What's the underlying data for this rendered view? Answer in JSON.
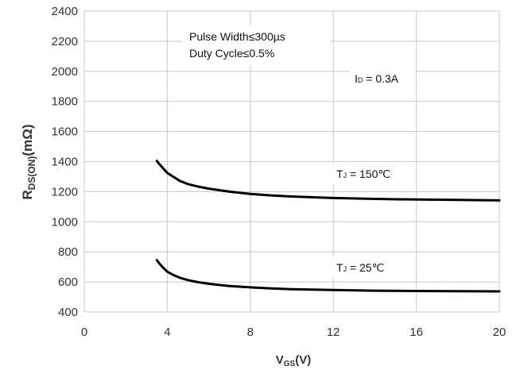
{
  "chart_data": {
    "type": "line",
    "title": "",
    "xlabel": {
      "main": "V",
      "sub": "GS",
      "suffix": "(V)"
    },
    "ylabel": {
      "main": "R",
      "sub": "DS(ON)",
      "suffix": "(mΩ)"
    },
    "xlim": [
      0,
      20
    ],
    "ylim": [
      400,
      2400
    ],
    "x_ticks": [
      0,
      4,
      8,
      12,
      16,
      20
    ],
    "y_ticks": [
      400,
      600,
      800,
      1000,
      1200,
      1400,
      1600,
      1800,
      2000,
      2200,
      2400
    ],
    "grid": true,
    "series": [
      {
        "x": [
          3.5,
          3.6,
          3.8,
          4.0,
          4.3,
          4.6,
          5,
          5.5,
          6,
          6.5,
          7,
          8,
          9,
          10,
          12,
          14,
          16,
          18,
          20
        ],
        "values": [
          1405,
          1385,
          1355,
          1325,
          1298,
          1272,
          1250,
          1233,
          1220,
          1210,
          1200,
          1185,
          1175,
          1168,
          1158,
          1152,
          1148,
          1145,
          1142
        ]
      },
      {
        "x": [
          3.5,
          3.6,
          3.8,
          4.0,
          4.3,
          4.6,
          5,
          5.5,
          6,
          6.5,
          7,
          8,
          9,
          10,
          12,
          14,
          16,
          18,
          20
        ],
        "values": [
          745,
          725,
          695,
          668,
          646,
          628,
          612,
          598,
          588,
          580,
          573,
          564,
          557,
          552,
          546,
          542,
          540,
          538,
          537
        ]
      }
    ],
    "annotations": [
      {
        "lines": [
          "Pulse Width≤300µs",
          "Duty Cycle≤0.5%"
        ]
      },
      {
        "main": "I",
        "sub": "D",
        "rest": " = 0.3A"
      },
      {
        "main": "T",
        "sub": "J",
        "rest": " = 150℃"
      },
      {
        "main": "T",
        "sub": "J",
        "rest": " = 25℃"
      }
    ]
  }
}
